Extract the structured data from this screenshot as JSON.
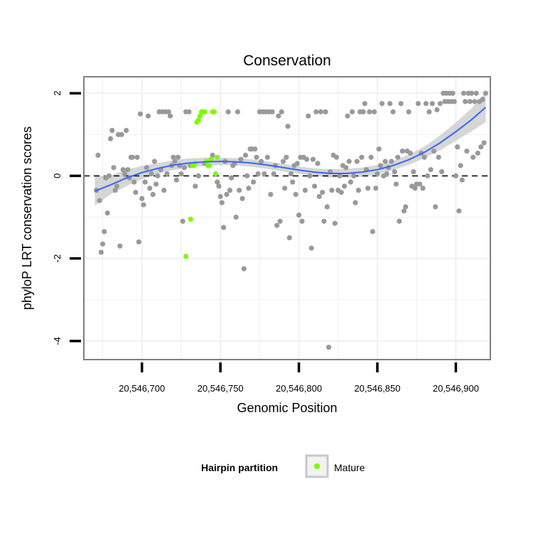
{
  "colors": {
    "background_point": "#999999",
    "mature_point": "#7CFC00",
    "smooth_line": "#3366FF",
    "confidence_band": "#C8C8C8",
    "panel_border": "#7F7F7F",
    "grid": "#F0F0F0"
  },
  "chart_data": {
    "type": "scatter",
    "title": "Conservation",
    "xlabel": "Genomic Position",
    "ylabel": "phyloP LRT conservation scores",
    "xlim": [
      20546663,
      20546922
    ],
    "ylim": [
      -4.45,
      2.4
    ],
    "x_ticks": [
      20546700,
      20546750,
      20546800,
      20546850,
      20546900
    ],
    "x_tick_labels": [
      "20,546,700",
      "20,546,750",
      "20,546,800",
      "20,546,850",
      "20,546,900"
    ],
    "y_ticks": [
      2,
      0,
      -2,
      -4
    ],
    "y_tick_labels": [
      "2",
      "0",
      "-2",
      "-4"
    ],
    "reference_line": {
      "y": 0,
      "style": "dashed"
    },
    "grid": true,
    "legend": {
      "title": "Hairpin partition",
      "position": "bottom",
      "entries": [
        "Mature"
      ]
    },
    "series": [
      {
        "points": [
          [
            20546671,
            -0.35
          ],
          [
            20546672,
            0.5
          ],
          [
            20546673,
            -0.6
          ],
          [
            20546674,
            -1.85
          ],
          [
            20546675,
            -1.65
          ],
          [
            20546676,
            -1.35
          ],
          [
            20546677,
            -0.05
          ],
          [
            20546678,
            -0.9
          ],
          [
            20546679,
            0.0
          ],
          [
            20546680,
            0.9
          ],
          [
            20546681,
            1.1
          ],
          [
            20546682,
            0.2
          ],
          [
            20546683,
            -0.35
          ],
          [
            20546684,
            -0.25
          ],
          [
            20546685,
            1.0
          ],
          [
            20546686,
            -1.7
          ],
          [
            20546687,
            1.0
          ],
          [
            20546688,
            0.15
          ],
          [
            20546689,
            0.05
          ],
          [
            20546690,
            1.1
          ],
          [
            20546691,
            0.15
          ],
          [
            20546692,
            -0.05
          ],
          [
            20546693,
            0.45
          ],
          [
            20546694,
            0.45
          ],
          [
            20546695,
            -0.15
          ],
          [
            20546696,
            -0.4
          ],
          [
            20546697,
            0.45
          ],
          [
            20546698,
            -1.6
          ],
          [
            20546699,
            1.5
          ],
          [
            20546700,
            -0.55
          ],
          [
            20546701,
            -0.7
          ],
          [
            20546702,
            -0.15
          ],
          [
            20546703,
            0.2
          ],
          [
            20546704,
            1.45
          ],
          [
            20546705,
            -0.3
          ],
          [
            20546706,
            0.05
          ],
          [
            20546707,
            -0.45
          ],
          [
            20546708,
            0.35
          ],
          [
            20546709,
            -0.2
          ],
          [
            20546710,
            0.0
          ],
          [
            20546711,
            1.55
          ],
          [
            20546712,
            0.15
          ],
          [
            20546713,
            1.55
          ],
          [
            20546714,
            -0.35
          ],
          [
            20546715,
            1.55
          ],
          [
            20546716,
            0.05
          ],
          [
            20546717,
            1.55
          ],
          [
            20546718,
            1.45
          ],
          [
            20546719,
            0.25
          ],
          [
            20546720,
            0.45
          ],
          [
            20546721,
            0.35
          ],
          [
            20546722,
            -0.1
          ],
          [
            20546723,
            0.45
          ],
          [
            20546724,
            0.25
          ],
          [
            20546725,
            0.05
          ],
          [
            20546726,
            -1.1
          ],
          [
            20546727,
            0.2
          ],
          [
            20546728,
            1.55
          ],
          [
            20546730,
            1.55
          ],
          [
            20546731,
            0.25
          ],
          [
            20546734,
            -0.25
          ],
          [
            20546736,
            0.0
          ],
          [
            20546740,
            0.3
          ],
          [
            20546745,
            0.5
          ],
          [
            20546748,
            -0.15
          ],
          [
            20546749,
            -0.25
          ],
          [
            20546750,
            -0.5
          ],
          [
            20546751,
            -0.65
          ],
          [
            20546752,
            -1.25
          ],
          [
            20546753,
            0.35
          ],
          [
            20546754,
            -0.45
          ],
          [
            20546755,
            1.55
          ],
          [
            20546756,
            -0.35
          ],
          [
            20546757,
            -0.05
          ],
          [
            20546758,
            0.25
          ],
          [
            20546759,
            0.3
          ],
          [
            20546760,
            -1.0
          ],
          [
            20546761,
            1.55
          ],
          [
            20546762,
            -0.35
          ],
          [
            20546763,
            0.4
          ],
          [
            20546764,
            -0.55
          ],
          [
            20546765,
            -2.25
          ],
          [
            20546766,
            0.5
          ],
          [
            20546767,
            0.0
          ],
          [
            20546768,
            -0.3
          ],
          [
            20546769,
            0.65
          ],
          [
            20546770,
            0.65
          ],
          [
            20546771,
            -0.15
          ],
          [
            20546772,
            0.65
          ],
          [
            20546773,
            0.45
          ],
          [
            20546774,
            0.05
          ],
          [
            20546775,
            1.55
          ],
          [
            20546776,
            0.35
          ],
          [
            20546777,
            1.55
          ],
          [
            20546778,
            0.05
          ],
          [
            20546779,
            1.55
          ],
          [
            20546780,
            0.45
          ],
          [
            20546781,
            1.55
          ],
          [
            20546782,
            -0.45
          ],
          [
            20546783,
            1.55
          ],
          [
            20546784,
            0.05
          ],
          [
            20546785,
            0.25
          ],
          [
            20546786,
            -1.2
          ],
          [
            20546787,
            1.45
          ],
          [
            20546788,
            -1.1
          ],
          [
            20546789,
            1.55
          ],
          [
            20546790,
            0.35
          ],
          [
            20546791,
            -0.3
          ],
          [
            20546792,
            0.45
          ],
          [
            20546793,
            1.2
          ],
          [
            20546794,
            -1.5
          ],
          [
            20546795,
            0.05
          ],
          [
            20546796,
            -0.15
          ],
          [
            20546797,
            0.25
          ],
          [
            20546798,
            -0.45
          ],
          [
            20546799,
            0.3
          ],
          [
            20546800,
            -0.95
          ],
          [
            20546801,
            0.45
          ],
          [
            20546802,
            -1.1
          ],
          [
            20546803,
            0.45
          ],
          [
            20546804,
            -0.35
          ],
          [
            20546805,
            0.4
          ],
          [
            20546806,
            1.45
          ],
          [
            20546807,
            0.0
          ],
          [
            20546808,
            -1.75
          ],
          [
            20546809,
            0.4
          ],
          [
            20546810,
            -0.25
          ],
          [
            20546811,
            1.55
          ],
          [
            20546812,
            0.3
          ],
          [
            20546813,
            -0.5
          ],
          [
            20546814,
            1.55
          ],
          [
            20546815,
            -0.4
          ],
          [
            20546816,
            -1.1
          ],
          [
            20546817,
            1.55
          ],
          [
            20546818,
            -0.75
          ],
          [
            20546819,
            -4.15
          ],
          [
            20546820,
            0.1
          ],
          [
            20546821,
            -0.35
          ],
          [
            20546822,
            0.5
          ],
          [
            20546823,
            -1.15
          ],
          [
            20546824,
            0.45
          ],
          [
            20546825,
            -0.35
          ],
          [
            20546826,
            0.0
          ],
          [
            20546827,
            -0.4
          ],
          [
            20546828,
            0.25
          ],
          [
            20546829,
            -0.25
          ],
          [
            20546830,
            0.2
          ],
          [
            20546831,
            1.45
          ],
          [
            20546832,
            0.35
          ],
          [
            20546833,
            -0.15
          ],
          [
            20546834,
            1.55
          ],
          [
            20546835,
            0.0
          ],
          [
            20546836,
            -0.65
          ],
          [
            20546837,
            0.35
          ],
          [
            20546838,
            -0.35
          ],
          [
            20546839,
            1.55
          ],
          [
            20546840,
            0.45
          ],
          [
            20546841,
            1.55
          ],
          [
            20546842,
            1.75
          ],
          [
            20546843,
            0.15
          ],
          [
            20546844,
            -0.3
          ],
          [
            20546845,
            1.55
          ],
          [
            20546846,
            0.45
          ],
          [
            20546847,
            -1.35
          ],
          [
            20546848,
            1.55
          ],
          [
            20546849,
            -0.3
          ],
          [
            20546850,
            0.05
          ],
          [
            20546851,
            0.65
          ],
          [
            20546852,
            0.25
          ],
          [
            20546853,
            1.75
          ],
          [
            20546854,
            0.0
          ],
          [
            20546855,
            0.35
          ],
          [
            20546856,
            0.05
          ],
          [
            20546857,
            0.2
          ],
          [
            20546858,
            1.75
          ],
          [
            20546859,
            0.35
          ],
          [
            20546860,
            1.55
          ],
          [
            20546861,
            0.1
          ],
          [
            20546862,
            -0.2
          ],
          [
            20546863,
            0.45
          ],
          [
            20546864,
            -1.1
          ],
          [
            20546865,
            1.75
          ],
          [
            20546866,
            0.6
          ],
          [
            20546867,
            -0.85
          ],
          [
            20546868,
            -0.75
          ],
          [
            20546869,
            0.6
          ],
          [
            20546870,
            1.55
          ],
          [
            20546871,
            0.55
          ],
          [
            20546872,
            -0.25
          ],
          [
            20546873,
            0.1
          ],
          [
            20546874,
            -0.3
          ],
          [
            20546875,
            -0.2
          ],
          [
            20546876,
            1.75
          ],
          [
            20546877,
            -0.2
          ],
          [
            20546878,
            0.55
          ],
          [
            20546879,
            -0.3
          ],
          [
            20546880,
            0.45
          ],
          [
            20546881,
            1.75
          ],
          [
            20546882,
            0.0
          ],
          [
            20546883,
            1.55
          ],
          [
            20546884,
            0.15
          ],
          [
            20546885,
            1.75
          ],
          [
            20546886,
            0.6
          ],
          [
            20546887,
            -0.75
          ],
          [
            20546888,
            1.6
          ],
          [
            20546889,
            0.45
          ],
          [
            20546890,
            1.75
          ],
          [
            20546891,
            0.1
          ],
          [
            20546892,
            2.0
          ],
          [
            20546893,
            1.8
          ],
          [
            20546894,
            2.0
          ],
          [
            20546895,
            1.8
          ],
          [
            20546896,
            2.0
          ],
          [
            20546897,
            1.8
          ],
          [
            20546898,
            2.0
          ],
          [
            20546899,
            1.8
          ],
          [
            20546900,
            0.0
          ],
          [
            20546901,
            0.7
          ],
          [
            20546902,
            -0.85
          ],
          [
            20546903,
            0.25
          ],
          [
            20546904,
            -0.1
          ],
          [
            20546905,
            2.0
          ],
          [
            20546906,
            1.8
          ],
          [
            20546907,
            0.6
          ],
          [
            20546908,
            2.0
          ],
          [
            20546909,
            1.8
          ],
          [
            20546910,
            2.0
          ],
          [
            20546911,
            0.45
          ],
          [
            20546912,
            1.8
          ],
          [
            20546913,
            2.0
          ],
          [
            20546914,
            0.55
          ],
          [
            20546915,
            1.8
          ],
          [
            20546916,
            0.7
          ],
          [
            20546917,
            1.85
          ],
          [
            20546918,
            0.8
          ],
          [
            20546919,
            2.0
          ]
        ]
      },
      {
        "name": "Mature",
        "points": [
          [
            20546728,
            -1.95
          ],
          [
            20546731,
            -1.05
          ],
          [
            20546732,
            0.25
          ],
          [
            20546733,
            0.25
          ],
          [
            20546734,
            0.3
          ],
          [
            20546735,
            1.3
          ],
          [
            20546736,
            1.35
          ],
          [
            20546737,
            1.45
          ],
          [
            20546738,
            1.55
          ],
          [
            20546739,
            1.55
          ],
          [
            20546740,
            1.55
          ],
          [
            20546741,
            0.35
          ],
          [
            20546742,
            0.25
          ],
          [
            20546743,
            0.25
          ],
          [
            20546744,
            0.4
          ],
          [
            20546745,
            1.55
          ],
          [
            20546746,
            1.55
          ],
          [
            20546747,
            0.05
          ],
          [
            20546748,
            0.45
          ]
        ]
      }
    ],
    "smooth_fit": {
      "x": [
        20546670,
        20546680,
        20546690,
        20546700,
        20546710,
        20546720,
        20546730,
        20546740,
        20546750,
        20546760,
        20546770,
        20546780,
        20546790,
        20546800,
        20546810,
        20546820,
        20546830,
        20546840,
        20546850,
        20546860,
        20546870,
        20546880,
        20546890,
        20546900,
        20546910,
        20546919
      ],
      "y": [
        -0.37,
        -0.22,
        -0.05,
        0.08,
        0.18,
        0.26,
        0.31,
        0.34,
        0.35,
        0.34,
        0.31,
        0.26,
        0.2,
        0.14,
        0.09,
        0.06,
        0.06,
        0.09,
        0.15,
        0.25,
        0.39,
        0.57,
        0.8,
        1.07,
        1.36,
        1.66
      ],
      "lower": [
        -0.72,
        -0.45,
        -0.25,
        -0.08,
        0.05,
        0.14,
        0.2,
        0.24,
        0.26,
        0.25,
        0.22,
        0.17,
        0.11,
        0.05,
        0.0,
        -0.04,
        -0.05,
        -0.02,
        0.04,
        0.14,
        0.27,
        0.43,
        0.62,
        0.85,
        1.08,
        1.3
      ],
      "upper": [
        -0.02,
        0.01,
        0.15,
        0.24,
        0.31,
        0.38,
        0.42,
        0.44,
        0.44,
        0.43,
        0.4,
        0.35,
        0.29,
        0.23,
        0.18,
        0.16,
        0.17,
        0.2,
        0.26,
        0.36,
        0.51,
        0.71,
        0.98,
        1.29,
        1.64,
        2.02
      ]
    }
  }
}
